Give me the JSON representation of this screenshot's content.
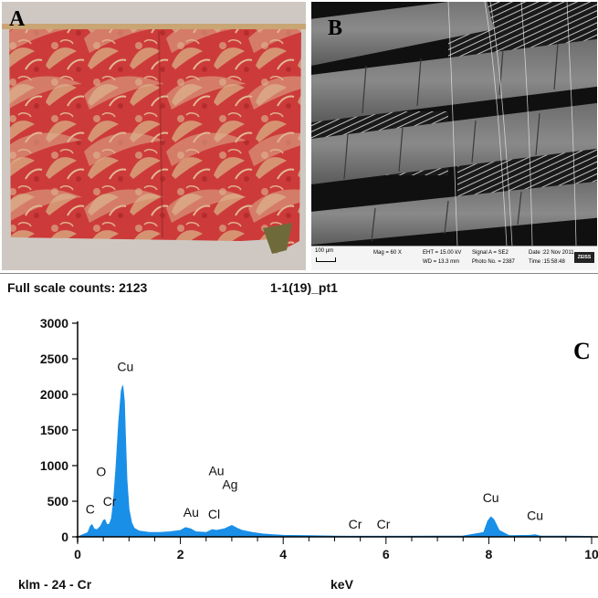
{
  "panel_a": {
    "letter": "A"
  },
  "panel_b": {
    "letter": "B",
    "scale_label": "100 µm",
    "mag": "Mag =    60 X",
    "eht": "EHT = 15.00 kV",
    "wd": "WD = 13.3 mm",
    "signal": "Signal A = SE2",
    "photo": "Photo No. = 2387",
    "date": "Date :22 Nov 2011",
    "time": "Time :15:58:48",
    "logo": "ZEISS"
  },
  "panel_c": {
    "letter": "C",
    "full_scale": "Full scale counts: 2123",
    "spectrum_id": "1-1(19)_pt1",
    "footer_left": "klm - 24 - Cr",
    "colors": {
      "spectrum": "#1a8fe8",
      "axis": "#000000"
    }
  },
  "chart_data": {
    "type": "area",
    "title": "",
    "xlabel": "keV",
    "ylabel": "",
    "xlim": [
      0,
      10
    ],
    "ylim": [
      0,
      3000
    ],
    "x_ticks": [
      "0",
      "2",
      "4",
      "6",
      "8",
      "10"
    ],
    "y_ticks": [
      "0",
      "500",
      "1000",
      "1500",
      "2000",
      "2500",
      "3000"
    ],
    "grid": false,
    "x": [
      0.0,
      0.1,
      0.2,
      0.25,
      0.28,
      0.32,
      0.38,
      0.45,
      0.5,
      0.53,
      0.57,
      0.62,
      0.66,
      0.7,
      0.75,
      0.8,
      0.85,
      0.88,
      0.91,
      0.93,
      0.96,
      1.0,
      1.05,
      1.1,
      1.2,
      1.4,
      1.6,
      1.8,
      2.0,
      2.1,
      2.2,
      2.3,
      2.5,
      2.62,
      2.7,
      2.85,
      3.0,
      3.1,
      3.2,
      3.4,
      3.6,
      3.8,
      4.0,
      4.5,
      5.0,
      5.4,
      5.7,
      6.0,
      6.5,
      7.0,
      7.5,
      7.9,
      7.98,
      8.04,
      8.1,
      8.2,
      8.4,
      8.8,
      8.9,
      9.0,
      9.5,
      10.0
    ],
    "y": [
      0,
      30,
      60,
      150,
      170,
      110,
      100,
      150,
      230,
      240,
      170,
      180,
      260,
      500,
      1000,
      1600,
      2050,
      2123,
      1900,
      1400,
      800,
      380,
      200,
      120,
      80,
      60,
      60,
      70,
      90,
      130,
      110,
      70,
      60,
      100,
      90,
      110,
      160,
      120,
      90,
      60,
      40,
      30,
      20,
      15,
      10,
      8,
      8,
      8,
      8,
      10,
      12,
      60,
      220,
      280,
      240,
      90,
      15,
      20,
      30,
      10,
      10,
      5
    ],
    "peaks": [
      {
        "label": "C",
        "x": 0.28,
        "y": 170
      },
      {
        "label": "O",
        "x": 0.53,
        "y": 240
      },
      {
        "label": "Cr",
        "x": 0.57,
        "y": 180
      },
      {
        "label": "Cu",
        "x": 0.93,
        "y": 2123
      },
      {
        "label": "Au",
        "x": 2.12,
        "y": 130
      },
      {
        "label": "Au",
        "x": 2.7,
        "y": 350
      },
      {
        "label": "Cl",
        "x": 2.62,
        "y": 100
      },
      {
        "label": "Ag",
        "x": 3.0,
        "y": 160
      },
      {
        "label": "Cr",
        "x": 5.4,
        "y": 10
      },
      {
        "label": "Cr",
        "x": 5.95,
        "y": 10
      },
      {
        "label": "Cu",
        "x": 8.04,
        "y": 280
      },
      {
        "label": "Cu",
        "x": 8.9,
        "y": 30
      }
    ]
  }
}
